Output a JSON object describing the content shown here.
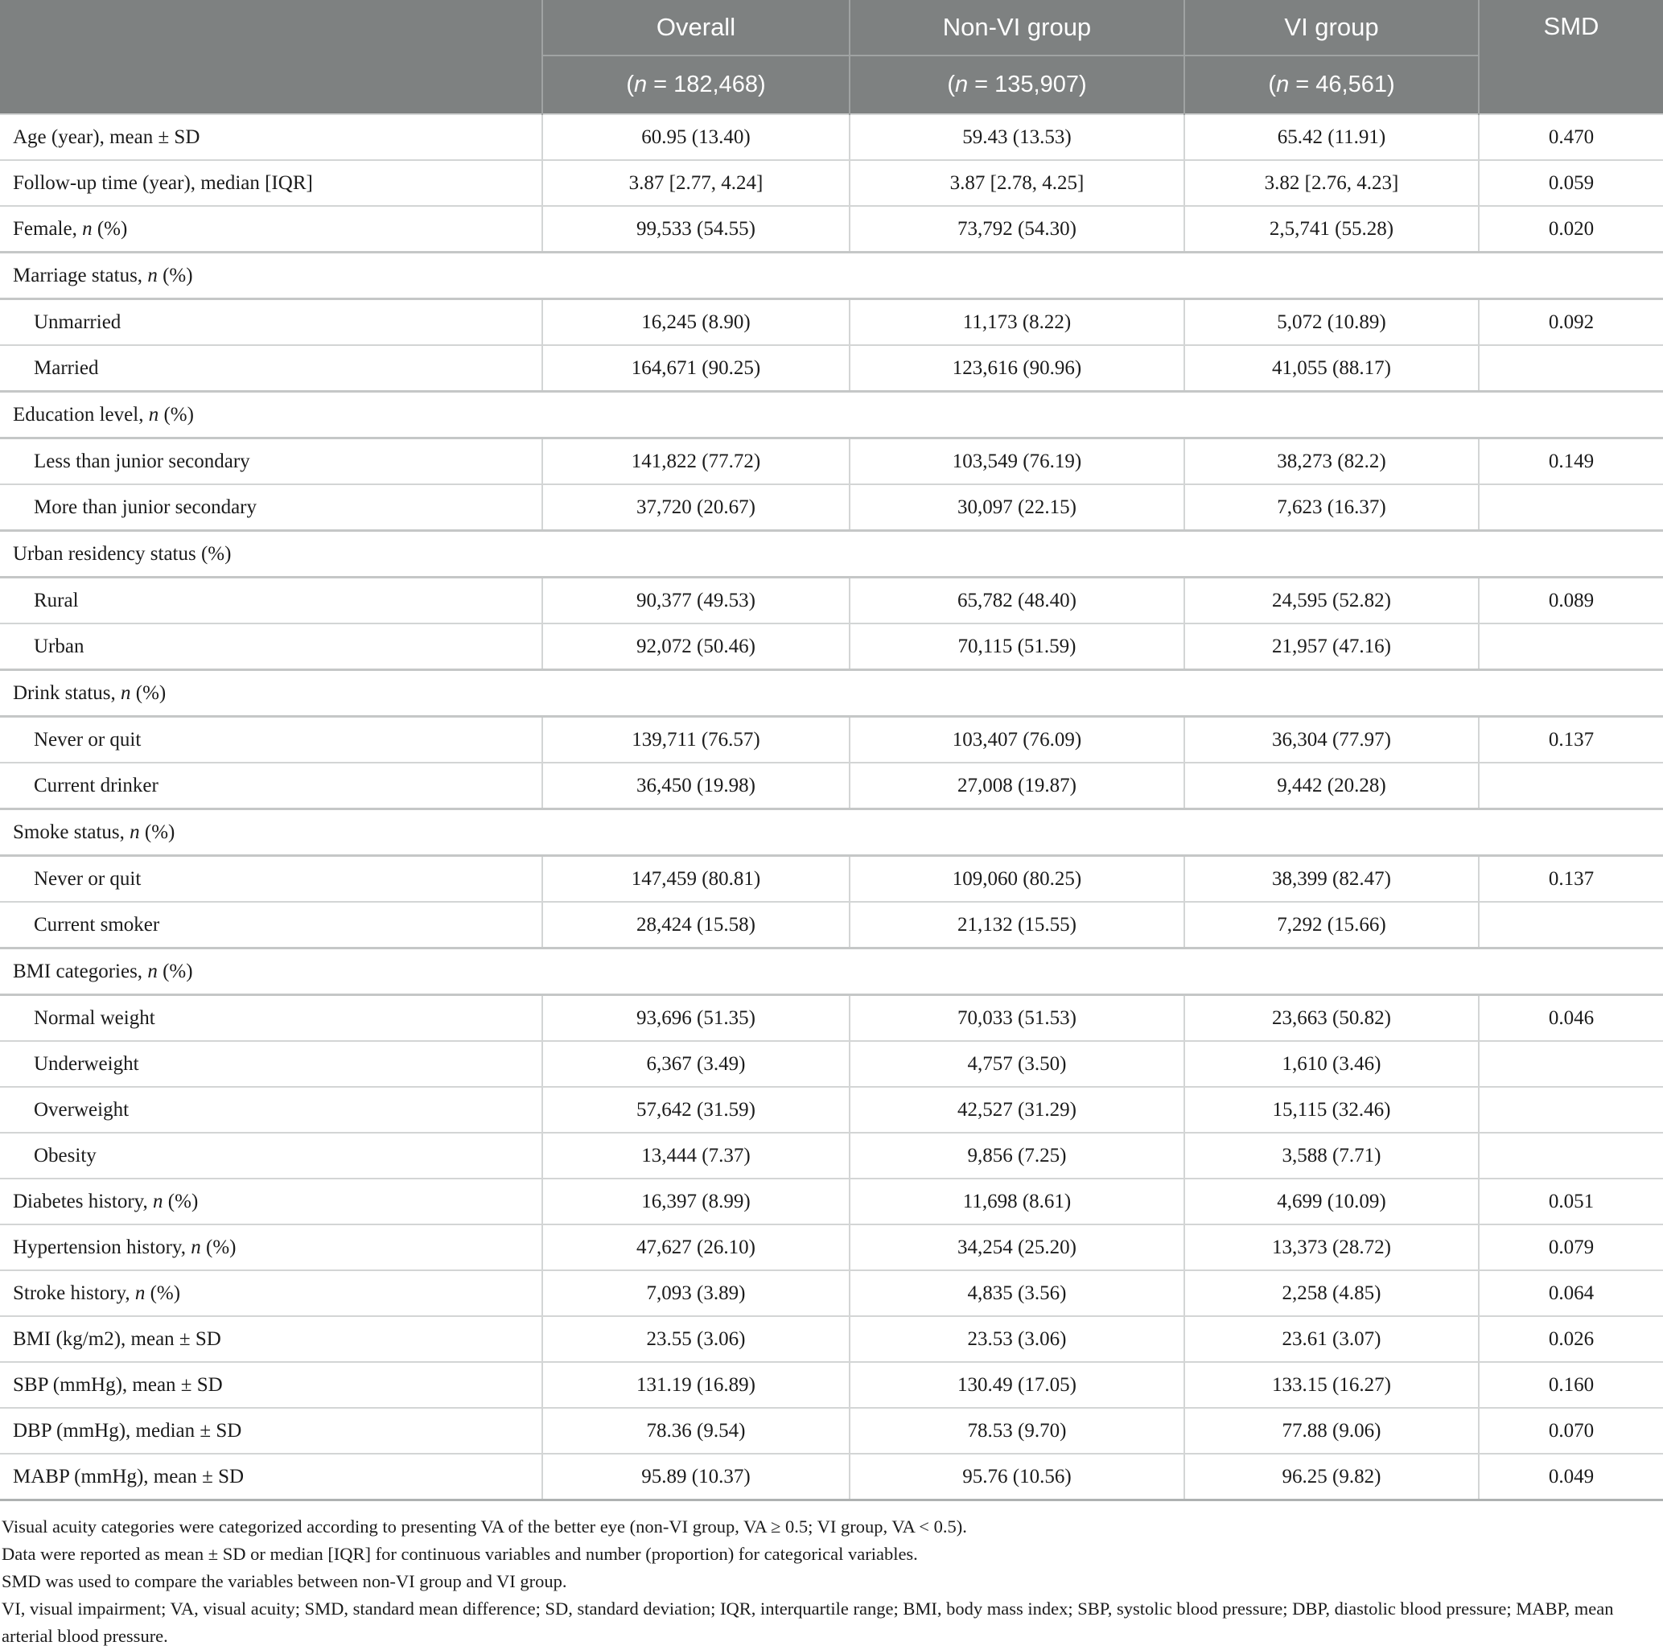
{
  "colors": {
    "header_bg": "#7e8181",
    "header_text": "#ffffff",
    "header_divider": "#a0a3a3",
    "row_border": "#d3d5d5",
    "section_border": "#c5c7c7",
    "body_text": "#1b1b1b"
  },
  "table": {
    "header": {
      "overall": {
        "label": "Overall",
        "n": "(n = 182,468)"
      },
      "nonvi": {
        "label": "Non-VI group",
        "n": "(n = 135,907)"
      },
      "vi": {
        "label": "VI group",
        "n": "(n = 46,561)"
      },
      "smd_label": "SMD"
    },
    "rows": [
      {
        "type": "data",
        "label": "Age (year), mean ± SD",
        "overall": "60.95 (13.40)",
        "nonvi": "59.43 (13.53)",
        "vi": "65.42 (11.91)",
        "smd": "0.470"
      },
      {
        "type": "data",
        "label": "Follow-up time (year), median [IQR]",
        "overall": "3.87 [2.77, 4.24]",
        "nonvi": "3.87 [2.78, 4.25]",
        "vi": "3.82 [2.76, 4.23]",
        "smd": "0.059"
      },
      {
        "type": "data",
        "label": "Female, n (%)",
        "overall": "99,533 (54.55)",
        "nonvi": "73,792 (54.30)",
        "vi": "2,5,741 (55.28)",
        "smd": "0.020"
      },
      {
        "type": "section",
        "label": "Marriage status, n (%)"
      },
      {
        "type": "sub",
        "label": "Unmarried",
        "overall": "16,245 (8.90)",
        "nonvi": "11,173 (8.22)",
        "vi": "5,072 (10.89)",
        "smd": "0.092"
      },
      {
        "type": "sub",
        "label": "Married",
        "overall": "164,671 (90.25)",
        "nonvi": "123,616 (90.96)",
        "vi": "41,055 (88.17)",
        "smd": ""
      },
      {
        "type": "section",
        "label": "Education level, n (%)"
      },
      {
        "type": "sub",
        "label": "Less than junior secondary",
        "overall": "141,822 (77.72)",
        "nonvi": "103,549 (76.19)",
        "vi": "38,273 (82.2)",
        "smd": "0.149"
      },
      {
        "type": "sub",
        "label": "More than junior secondary",
        "overall": "37,720 (20.67)",
        "nonvi": "30,097 (22.15)",
        "vi": "7,623 (16.37)",
        "smd": ""
      },
      {
        "type": "section",
        "label": "Urban residency status (%)"
      },
      {
        "type": "sub",
        "label": "Rural",
        "overall": "90,377 (49.53)",
        "nonvi": "65,782 (48.40)",
        "vi": "24,595 (52.82)",
        "smd": "0.089"
      },
      {
        "type": "sub",
        "label": "Urban",
        "overall": "92,072 (50.46)",
        "nonvi": "70,115 (51.59)",
        "vi": "21,957 (47.16)",
        "smd": ""
      },
      {
        "type": "section",
        "label": "Drink status, n (%)"
      },
      {
        "type": "sub",
        "label": "Never or quit",
        "overall": "139,711 (76.57)",
        "nonvi": "103,407 (76.09)",
        "vi": "36,304 (77.97)",
        "smd": "0.137"
      },
      {
        "type": "sub",
        "label": "Current drinker",
        "overall": "36,450 (19.98)",
        "nonvi": "27,008 (19.87)",
        "vi": "9,442 (20.28)",
        "smd": ""
      },
      {
        "type": "section",
        "label": "Smoke status, n (%)"
      },
      {
        "type": "sub",
        "label": "Never or quit",
        "overall": "147,459 (80.81)",
        "nonvi": "109,060 (80.25)",
        "vi": "38,399 (82.47)",
        "smd": "0.137"
      },
      {
        "type": "sub",
        "label": "Current smoker",
        "overall": "28,424 (15.58)",
        "nonvi": "21,132 (15.55)",
        "vi": "7,292 (15.66)",
        "smd": ""
      },
      {
        "type": "section",
        "label": "BMI categories, n (%)"
      },
      {
        "type": "sub",
        "label": "Normal weight",
        "overall": "93,696 (51.35)",
        "nonvi": "70,033 (51.53)",
        "vi": "23,663 (50.82)",
        "smd": "0.046"
      },
      {
        "type": "sub",
        "label": "Underweight",
        "overall": "6,367 (3.49)",
        "nonvi": "4,757 (3.50)",
        "vi": "1,610 (3.46)",
        "smd": ""
      },
      {
        "type": "sub",
        "label": "Overweight",
        "overall": "57,642 (31.59)",
        "nonvi": "42,527 (31.29)",
        "vi": "15,115 (32.46)",
        "smd": ""
      },
      {
        "type": "sub",
        "label": "Obesity",
        "overall": "13,444 (7.37)",
        "nonvi": "9,856 (7.25)",
        "vi": "3,588 (7.71)",
        "smd": ""
      },
      {
        "type": "data",
        "label": "Diabetes history, n (%)",
        "overall": "16,397 (8.99)",
        "nonvi": "11,698 (8.61)",
        "vi": "4,699 (10.09)",
        "smd": "0.051"
      },
      {
        "type": "data",
        "label": "Hypertension history, n (%)",
        "overall": "47,627 (26.10)",
        "nonvi": "34,254 (25.20)",
        "vi": "13,373 (28.72)",
        "smd": "0.079"
      },
      {
        "type": "data",
        "label": "Stroke history, n (%)",
        "overall": "7,093 (3.89)",
        "nonvi": "4,835 (3.56)",
        "vi": "2,258 (4.85)",
        "smd": "0.064"
      },
      {
        "type": "data",
        "label": "BMI (kg/m2), mean ± SD",
        "overall": "23.55 (3.06)",
        "nonvi": "23.53 (3.06)",
        "vi": "23.61 (3.07)",
        "smd": "0.026"
      },
      {
        "type": "data",
        "label": "SBP (mmHg), mean ± SD",
        "overall": "131.19 (16.89)",
        "nonvi": "130.49 (17.05)",
        "vi": "133.15 (16.27)",
        "smd": "0.160"
      },
      {
        "type": "data",
        "label": "DBP (mmHg), median ± SD",
        "overall": "78.36 (9.54)",
        "nonvi": "78.53 (9.70)",
        "vi": "77.88 (9.06)",
        "smd": "0.070"
      },
      {
        "type": "data",
        "label": "MABP (mmHg), mean ± SD",
        "overall": "95.89 (10.37)",
        "nonvi": "95.76 (10.56)",
        "vi": "96.25 (9.82)",
        "smd": "0.049"
      }
    ]
  },
  "footnotes": [
    "Visual acuity categories were categorized according to presenting VA of the better eye (non-VI group, VA ≥ 0.5; VI group, VA < 0.5).",
    "Data were reported as mean ± SD or median [IQR] for continuous variables and number (proportion) for categorical variables.",
    "SMD was used to compare the variables between non-VI group and VI group.",
    "VI, visual impairment; VA, visual acuity; SMD, standard mean difference; SD, standard deviation; IQR, interquartile range; BMI, body mass index; SBP, systolic blood pressure; DBP, diastolic blood pressure; MABP, mean arterial blood pressure."
  ]
}
